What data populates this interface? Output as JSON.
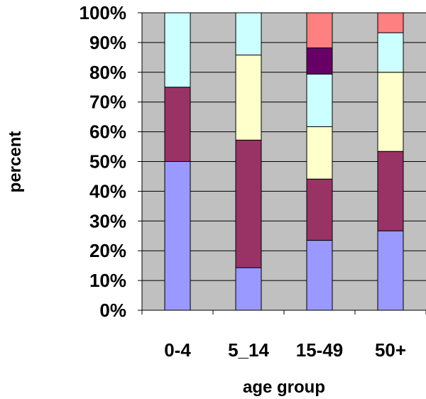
{
  "chart_data": {
    "type": "bar",
    "stacked": true,
    "xlabel": "age group",
    "ylabel": "percent",
    "ylim": [
      0,
      100
    ],
    "ytick_values": [
      0,
      10,
      20,
      30,
      40,
      50,
      60,
      70,
      80,
      90,
      100
    ],
    "ytick_labels": [
      "0%",
      "10%",
      "20%",
      "30%",
      "40%",
      "50%",
      "60%",
      "70%",
      "80%",
      "90%",
      "100%"
    ],
    "categories": [
      "0-4",
      "5_14",
      "15-49",
      "50+"
    ],
    "grid": true,
    "legend": "none",
    "plot_background": "#c0c0c0",
    "series": [
      {
        "color": "#9999ff",
        "values": [
          50,
          14.3,
          23.5,
          26.7
        ]
      },
      {
        "color": "#993366",
        "values": [
          25,
          42.9,
          20.6,
          26.7
        ]
      },
      {
        "color": "#ffffcc",
        "values": [
          0,
          28.6,
          17.6,
          26.6
        ]
      },
      {
        "color": "#ccffff",
        "values": [
          25,
          14.2,
          17.7,
          13.3
        ]
      },
      {
        "color": "#660066",
        "values": [
          0,
          0,
          8.8,
          0
        ]
      },
      {
        "color": "#ff8080",
        "values": [
          0,
          0,
          11.8,
          6.7
        ]
      }
    ]
  }
}
